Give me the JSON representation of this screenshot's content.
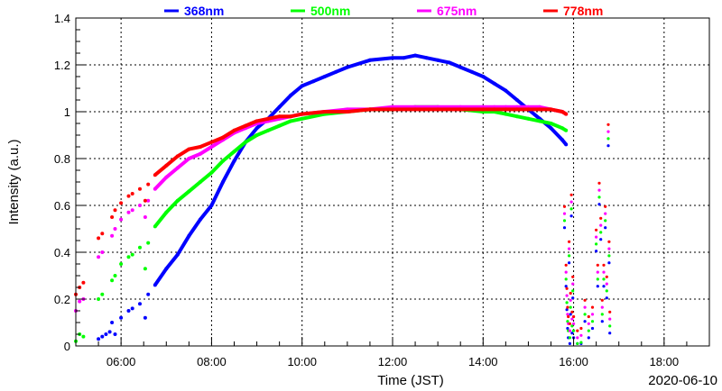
{
  "chart_data": {
    "type": "scatter",
    "xlabel": "Time (JST)",
    "ylabel": "Intensity (a.u.)",
    "date_label": "2020-06-10",
    "x_range": [
      "05:00",
      "19:00"
    ],
    "ylim": [
      0,
      1.4
    ],
    "x_ticks": [
      "06:00",
      "08:00",
      "10:00",
      "12:00",
      "14:00",
      "16:00",
      "18:00"
    ],
    "y_ticks": [
      "0",
      "0.2",
      "0.4",
      "0.6",
      "0.8",
      "1",
      "1.2",
      "1.4"
    ],
    "grid": true,
    "legend_position": "top",
    "series": [
      {
        "name": "368nm",
        "color": "#0000ff",
        "points": [
          [
            "05:30",
            0.03
          ],
          [
            "05:35",
            0.04
          ],
          [
            "05:40",
            0.05
          ],
          [
            "05:45",
            0.06
          ],
          [
            "05:48",
            0.1
          ],
          [
            "05:52",
            0.05
          ],
          [
            "06:00",
            0.12
          ],
          [
            "06:10",
            0.15
          ],
          [
            "06:15",
            0.16
          ],
          [
            "06:25",
            0.18
          ],
          [
            "06:32",
            0.12
          ],
          [
            "06:36",
            0.22
          ],
          [
            "06:45",
            0.26
          ],
          [
            "07:00",
            0.33
          ],
          [
            "07:15",
            0.39
          ],
          [
            "07:30",
            0.47
          ],
          [
            "07:45",
            0.54
          ],
          [
            "08:00",
            0.6
          ],
          [
            "08:15",
            0.7
          ],
          [
            "08:30",
            0.79
          ],
          [
            "08:45",
            0.87
          ],
          [
            "09:00",
            0.93
          ],
          [
            "09:15",
            0.97
          ],
          [
            "09:30",
            1.02
          ],
          [
            "09:45",
            1.07
          ],
          [
            "10:00",
            1.11
          ],
          [
            "10:15",
            1.13
          ],
          [
            "10:30",
            1.15
          ],
          [
            "10:45",
            1.17
          ],
          [
            "11:00",
            1.19
          ],
          [
            "11:30",
            1.22
          ],
          [
            "12:00",
            1.23
          ],
          [
            "12:15",
            1.23
          ],
          [
            "12:30",
            1.24
          ],
          [
            "12:45",
            1.23
          ],
          [
            "13:00",
            1.22
          ],
          [
            "13:15",
            1.21
          ],
          [
            "13:30",
            1.19
          ],
          [
            "13:45",
            1.17
          ],
          [
            "14:00",
            1.15
          ],
          [
            "14:15",
            1.12
          ],
          [
            "14:30",
            1.09
          ],
          [
            "14:45",
            1.05
          ],
          [
            "15:00",
            1.01
          ],
          [
            "15:15",
            0.97
          ],
          [
            "15:30",
            0.93
          ],
          [
            "15:45",
            0.88
          ],
          [
            "15:50",
            0.86
          ]
        ]
      },
      {
        "name": "500nm",
        "color": "#00ff00",
        "points": [
          [
            "05:00",
            0.02
          ],
          [
            "05:05",
            0.05
          ],
          [
            "05:10",
            0.04
          ],
          [
            "05:30",
            0.2
          ],
          [
            "05:35",
            0.22
          ],
          [
            "05:48",
            0.28
          ],
          [
            "05:52",
            0.3
          ],
          [
            "06:00",
            0.35
          ],
          [
            "06:10",
            0.38
          ],
          [
            "06:15",
            0.39
          ],
          [
            "06:25",
            0.42
          ],
          [
            "06:32",
            0.33
          ],
          [
            "06:36",
            0.44
          ],
          [
            "06:45",
            0.51
          ],
          [
            "07:00",
            0.57
          ],
          [
            "07:15",
            0.62
          ],
          [
            "07:30",
            0.66
          ],
          [
            "07:45",
            0.7
          ],
          [
            "08:00",
            0.74
          ],
          [
            "08:15",
            0.79
          ],
          [
            "08:30",
            0.83
          ],
          [
            "08:45",
            0.87
          ],
          [
            "09:00",
            0.9
          ],
          [
            "09:15",
            0.92
          ],
          [
            "09:30",
            0.94
          ],
          [
            "09:45",
            0.96
          ],
          [
            "10:00",
            0.97
          ],
          [
            "10:30",
            0.99
          ],
          [
            "11:00",
            1.0
          ],
          [
            "11:30",
            1.01
          ],
          [
            "12:00",
            1.01
          ],
          [
            "12:30",
            1.02
          ],
          [
            "13:00",
            1.02
          ],
          [
            "13:30",
            1.01
          ],
          [
            "14:00",
            1.0
          ],
          [
            "14:15",
            1.0
          ],
          [
            "14:30",
            0.99
          ],
          [
            "14:45",
            0.98
          ],
          [
            "15:00",
            0.97
          ],
          [
            "15:15",
            0.96
          ],
          [
            "15:30",
            0.95
          ],
          [
            "15:45",
            0.93
          ],
          [
            "15:50",
            0.92
          ]
        ]
      },
      {
        "name": "675nm",
        "color": "#ff00ff",
        "points": [
          [
            "05:00",
            0.15
          ],
          [
            "05:05",
            0.19
          ],
          [
            "05:10",
            0.2
          ],
          [
            "05:30",
            0.38
          ],
          [
            "05:35",
            0.4
          ],
          [
            "05:48",
            0.47
          ],
          [
            "05:52",
            0.5
          ],
          [
            "06:00",
            0.54
          ],
          [
            "06:10",
            0.57
          ],
          [
            "06:15",
            0.58
          ],
          [
            "06:25",
            0.6
          ],
          [
            "06:32",
            0.55
          ],
          [
            "06:36",
            0.62
          ],
          [
            "06:45",
            0.67
          ],
          [
            "07:00",
            0.72
          ],
          [
            "07:15",
            0.76
          ],
          [
            "07:30",
            0.8
          ],
          [
            "07:45",
            0.82
          ],
          [
            "08:00",
            0.85
          ],
          [
            "08:15",
            0.88
          ],
          [
            "08:30",
            0.91
          ],
          [
            "08:45",
            0.93
          ],
          [
            "09:00",
            0.95
          ],
          [
            "09:15",
            0.96
          ],
          [
            "09:30",
            0.97
          ],
          [
            "09:45",
            0.98
          ],
          [
            "10:00",
            0.99
          ],
          [
            "10:30",
            1.0
          ],
          [
            "11:00",
            1.01
          ],
          [
            "11:30",
            1.01
          ],
          [
            "12:00",
            1.02
          ],
          [
            "12:30",
            1.02
          ],
          [
            "13:00",
            1.02
          ],
          [
            "13:30",
            1.02
          ],
          [
            "14:00",
            1.02
          ],
          [
            "14:15",
            1.02
          ],
          [
            "14:30",
            1.02
          ],
          [
            "14:45",
            1.02
          ],
          [
            "15:00",
            1.02
          ],
          [
            "15:15",
            1.02
          ],
          [
            "15:30",
            1.01
          ],
          [
            "15:45",
            1.0
          ],
          [
            "15:50",
            0.99
          ]
        ]
      },
      {
        "name": "778nm",
        "color": "#ff0000",
        "points": [
          [
            "05:00",
            0.22
          ],
          [
            "05:05",
            0.25
          ],
          [
            "05:10",
            0.27
          ],
          [
            "05:30",
            0.46
          ],
          [
            "05:35",
            0.48
          ],
          [
            "05:48",
            0.55
          ],
          [
            "05:52",
            0.58
          ],
          [
            "06:00",
            0.61
          ],
          [
            "06:10",
            0.64
          ],
          [
            "06:15",
            0.65
          ],
          [
            "06:25",
            0.67
          ],
          [
            "06:32",
            0.62
          ],
          [
            "06:36",
            0.69
          ],
          [
            "06:45",
            0.73
          ],
          [
            "07:00",
            0.77
          ],
          [
            "07:15",
            0.81
          ],
          [
            "07:30",
            0.84
          ],
          [
            "07:45",
            0.85
          ],
          [
            "08:00",
            0.87
          ],
          [
            "08:15",
            0.89
          ],
          [
            "08:30",
            0.92
          ],
          [
            "08:45",
            0.94
          ],
          [
            "09:00",
            0.96
          ],
          [
            "09:15",
            0.97
          ],
          [
            "09:30",
            0.98
          ],
          [
            "09:45",
            0.98
          ],
          [
            "10:00",
            0.99
          ],
          [
            "10:30",
            1.0
          ],
          [
            "11:00",
            1.0
          ],
          [
            "11:30",
            1.01
          ],
          [
            "12:00",
            1.01
          ],
          [
            "12:30",
            1.01
          ],
          [
            "13:00",
            1.01
          ],
          [
            "13:30",
            1.01
          ],
          [
            "14:00",
            1.01
          ],
          [
            "14:15",
            1.01
          ],
          [
            "14:30",
            1.01
          ],
          [
            "14:45",
            1.01
          ],
          [
            "15:00",
            1.01
          ],
          [
            "15:15",
            1.01
          ],
          [
            "15:30",
            1.01
          ],
          [
            "15:45",
            1.0
          ],
          [
            "15:50",
            0.99
          ]
        ]
      }
    ],
    "scatter_bursts": [
      {
        "points": [
          [
            "15:48",
            0.55
          ],
          [
            "15:50",
            0.3
          ],
          [
            "15:51",
            0.2
          ],
          [
            "15:52",
            0.12
          ],
          [
            "15:53",
            0.08
          ],
          [
            "15:54",
            0.4
          ],
          [
            "15:55",
            0.05
          ],
          [
            "15:56",
            0.18
          ],
          [
            "15:57",
            0.6
          ],
          [
            "15:58",
            0.1
          ],
          [
            "15:59",
            0.25
          ],
          [
            "16:00",
            0.08
          ],
          [
            "16:05",
            0.02
          ],
          [
            "16:10",
            0.03
          ],
          [
            "16:15",
            0.15
          ],
          [
            "16:20",
            0.08
          ],
          [
            "16:25",
            0.12
          ],
          [
            "16:30",
            0.45
          ],
          [
            "16:32",
            0.3
          ],
          [
            "16:34",
            0.65
          ],
          [
            "16:36",
            0.5
          ],
          [
            "16:38",
            0.15
          ],
          [
            "16:40",
            0.3
          ],
          [
            "16:42",
            0.55
          ],
          [
            "16:44",
            0.25
          ],
          [
            "16:46",
            0.9
          ],
          [
            "16:47",
            0.4
          ],
          [
            "16:48",
            0.1
          ]
        ]
      }
    ]
  }
}
